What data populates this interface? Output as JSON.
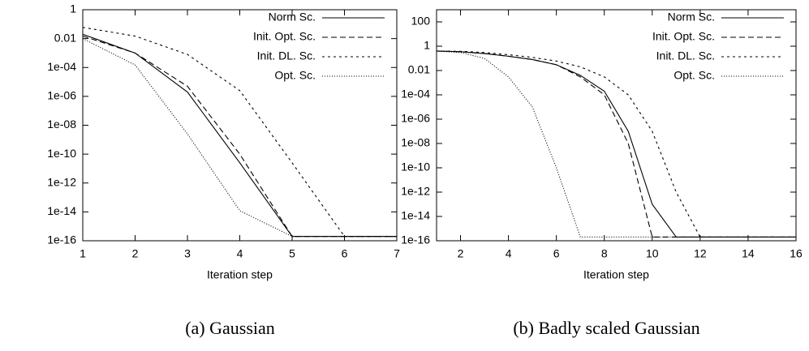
{
  "chart_data": [
    {
      "type": "line",
      "caption": "(a) Gaussian",
      "x_label": "Iteration step",
      "x": [
        1,
        2,
        3,
        4,
        5,
        6,
        7
      ],
      "xlim": [
        1,
        7
      ],
      "xticks": [
        1,
        2,
        3,
        4,
        5,
        6,
        7
      ],
      "ylim": [
        1e-16,
        1
      ],
      "log_y": true,
      "yticks": [
        1,
        0.01,
        {
          "value": 0.0001,
          "label": "1e-04"
        },
        {
          "value": 1e-06,
          "label": "1e-06"
        },
        {
          "value": 1e-08,
          "label": "1e-08"
        },
        {
          "value": 1e-10,
          "label": "1e-10"
        },
        {
          "value": 1e-12,
          "label": "1e-12"
        },
        {
          "value": 1e-14,
          "label": "1e-14"
        },
        {
          "value": 1e-16,
          "label": "1e-16"
        }
      ],
      "legend": "top-right",
      "series": [
        {
          "name": "Norm Sc.",
          "color": "#000000",
          "dash": "solid",
          "values": [
            0.02,
            0.001,
            2e-06,
            2.5e-11,
            2e-16,
            2e-16,
            2e-16
          ]
        },
        {
          "name": "Init. Opt. Sc.",
          "color": "#000000",
          "dash": "dashed",
          "values": [
            0.015,
            0.001,
            5e-06,
            1e-10,
            2e-16,
            2e-16,
            2e-16
          ]
        },
        {
          "name": "Init. DL. Sc.",
          "color": "#000000",
          "dash": "short-dashed",
          "values": [
            0.06,
            0.015,
            0.0008,
            2.5e-06,
            2.5e-11,
            2e-16,
            2e-16
          ]
        },
        {
          "name": "Opt. Sc.",
          "color": "#000000",
          "dash": "dotted",
          "values": [
            0.01,
            0.00015,
            2.5e-09,
            1.2e-14,
            2e-16,
            2e-16,
            2e-16
          ]
        }
      ]
    },
    {
      "type": "line",
      "caption": "(b) Badly scaled Gaussian",
      "x_label": "Iteration step",
      "x": [
        1,
        2,
        3,
        4,
        5,
        6,
        7,
        8,
        9,
        10,
        11,
        12,
        13,
        14,
        15,
        16
      ],
      "xlim": [
        1,
        16
      ],
      "xticks": [
        2,
        4,
        6,
        8,
        10,
        12,
        14,
        16
      ],
      "ylim": [
        1e-16,
        1000
      ],
      "log_y": true,
      "yticks": [
        100,
        1,
        0.01,
        {
          "value": 0.0001,
          "label": "1e-04"
        },
        {
          "value": 1e-06,
          "label": "1e-06"
        },
        {
          "value": 1e-08,
          "label": "1e-08"
        },
        {
          "value": 1e-10,
          "label": "1e-10"
        },
        {
          "value": 1e-12,
          "label": "1e-12"
        },
        {
          "value": 1e-14,
          "label": "1e-14"
        },
        {
          "value": 1e-16,
          "label": "1e-16"
        }
      ],
      "legend": "top-right",
      "series": [
        {
          "name": "Norm Sc.",
          "color": "#000000",
          "dash": "solid",
          "values": [
            0.4,
            0.35,
            0.25,
            0.15,
            0.08,
            0.03,
            0.004,
            0.0002,
            1e-07,
            1e-13,
            2e-16,
            2e-16,
            2e-16,
            2e-16,
            2e-16,
            2e-16
          ]
        },
        {
          "name": "Init. Opt. Sc.",
          "color": "#000000",
          "dash": "dashed",
          "values": [
            0.4,
            0.35,
            0.25,
            0.15,
            0.08,
            0.03,
            0.003,
            0.0001,
            1e-08,
            2e-16,
            2e-16,
            2e-16,
            2e-16,
            2e-16,
            2e-16,
            2e-16
          ]
        },
        {
          "name": "Init. DL. Sc.",
          "color": "#000000",
          "dash": "short-dashed",
          "values": [
            0.4,
            0.38,
            0.3,
            0.2,
            0.12,
            0.06,
            0.02,
            0.003,
            0.0001,
            1e-07,
            1e-12,
            2e-16,
            2e-16,
            2e-16,
            2e-16,
            2e-16
          ]
        },
        {
          "name": "Opt. Sc.",
          "color": "#000000",
          "dash": "dotted",
          "values": [
            0.4,
            0.3,
            0.1,
            0.003,
            1e-05,
            1e-10,
            2e-16,
            2e-16,
            2e-16,
            2e-16,
            2e-16,
            2e-16,
            2e-16,
            2e-16,
            2e-16,
            2e-16
          ]
        }
      ]
    }
  ]
}
